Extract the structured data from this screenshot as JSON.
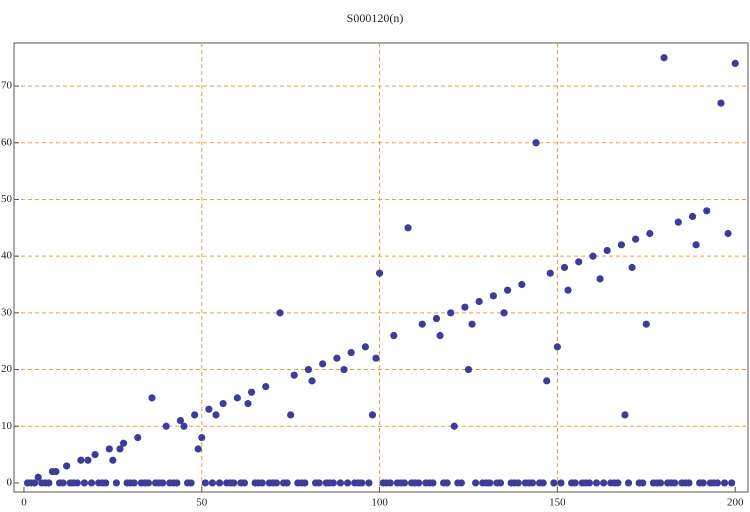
{
  "chart_data": {
    "type": "scatter",
    "title": "S000120(n)",
    "x": [
      1,
      2,
      3,
      4,
      5,
      6,
      7,
      8,
      9,
      10,
      11,
      12,
      13,
      14,
      15,
      16,
      17,
      18,
      19,
      20,
      21,
      22,
      23,
      24,
      25,
      26,
      27,
      28,
      29,
      30,
      31,
      32,
      33,
      34,
      35,
      36,
      37,
      38,
      39,
      40,
      41,
      42,
      43,
      44,
      45,
      46,
      47,
      48,
      49,
      50,
      51,
      52,
      53,
      54,
      55,
      56,
      57,
      58,
      59,
      60,
      61,
      62,
      63,
      64,
      65,
      66,
      67,
      68,
      69,
      70,
      71,
      72,
      73,
      74,
      75,
      76,
      77,
      78,
      79,
      80,
      81,
      82,
      83,
      84,
      85,
      86,
      87,
      88,
      89,
      90,
      91,
      92,
      93,
      94,
      95,
      96,
      97,
      98,
      99,
      100,
      101,
      102,
      103,
      104,
      105,
      106,
      107,
      108,
      109,
      110,
      111,
      112,
      113,
      114,
      115,
      116,
      117,
      118,
      119,
      120,
      121,
      122,
      123,
      124,
      125,
      126,
      127,
      128,
      129,
      130,
      131,
      132,
      133,
      134,
      135,
      136,
      137,
      138,
      139,
      140,
      141,
      142,
      143,
      144,
      145,
      146,
      147,
      148,
      149,
      150,
      151,
      152,
      153,
      154,
      155,
      156,
      157,
      158,
      159,
      160,
      161,
      162,
      163,
      164,
      165,
      166,
      167,
      168,
      169,
      170,
      171,
      172,
      173,
      174,
      175,
      176,
      177,
      178,
      179,
      180,
      181,
      182,
      183,
      184,
      185,
      186,
      187,
      188,
      189,
      190,
      191,
      192,
      193,
      194,
      195,
      196,
      197,
      198,
      199,
      200
    ],
    "values": [
      0,
      0,
      0,
      1,
      0,
      0,
      0,
      2,
      2,
      0,
      0,
      3,
      0,
      0,
      0,
      4,
      0,
      4,
      0,
      5,
      0,
      0,
      0,
      6,
      4,
      0,
      6,
      7,
      0,
      0,
      0,
      8,
      0,
      0,
      0,
      15,
      0,
      0,
      0,
      10,
      0,
      0,
      0,
      11,
      10,
      0,
      0,
      12,
      6,
      8,
      0,
      13,
      0,
      12,
      0,
      14,
      0,
      0,
      0,
      15,
      0,
      0,
      14,
      16,
      0,
      0,
      0,
      17,
      0,
      0,
      0,
      30,
      0,
      0,
      12,
      19,
      0,
      0,
      0,
      20,
      18,
      0,
      0,
      21,
      0,
      0,
      0,
      22,
      0,
      20,
      0,
      23,
      0,
      0,
      0,
      24,
      0,
      12,
      22,
      37,
      0,
      0,
      0,
      26,
      0,
      0,
      0,
      45,
      0,
      0,
      0,
      28,
      0,
      0,
      0,
      29,
      26,
      0,
      0,
      30,
      10,
      0,
      0,
      31,
      20,
      28,
      0,
      32,
      0,
      0,
      0,
      33,
      0,
      0,
      30,
      34,
      0,
      0,
      0,
      35,
      0,
      0,
      0,
      60,
      0,
      0,
      18,
      37,
      0,
      24,
      0,
      38,
      34,
      0,
      0,
      39,
      0,
      0,
      0,
      40,
      0,
      36,
      0,
      41,
      0,
      0,
      0,
      42,
      12,
      0,
      38,
      43,
      0,
      0,
      28,
      44,
      0,
      0,
      0,
      75,
      0,
      0,
      0,
      46,
      0,
      0,
      0,
      47,
      42,
      0,
      0,
      48,
      0,
      0,
      0,
      67,
      0,
      44,
      0,
      74
    ],
    "color": "#3d3d98",
    "xlim": [
      -2.8,
      203.6
    ],
    "ylim": [
      -1.6,
      77.6
    ],
    "xticks": [
      0,
      50,
      100,
      150,
      200
    ],
    "yticks": [
      0,
      10,
      20,
      30,
      40,
      50,
      60,
      70
    ],
    "grid": true,
    "grid_color": "#e6a040"
  }
}
